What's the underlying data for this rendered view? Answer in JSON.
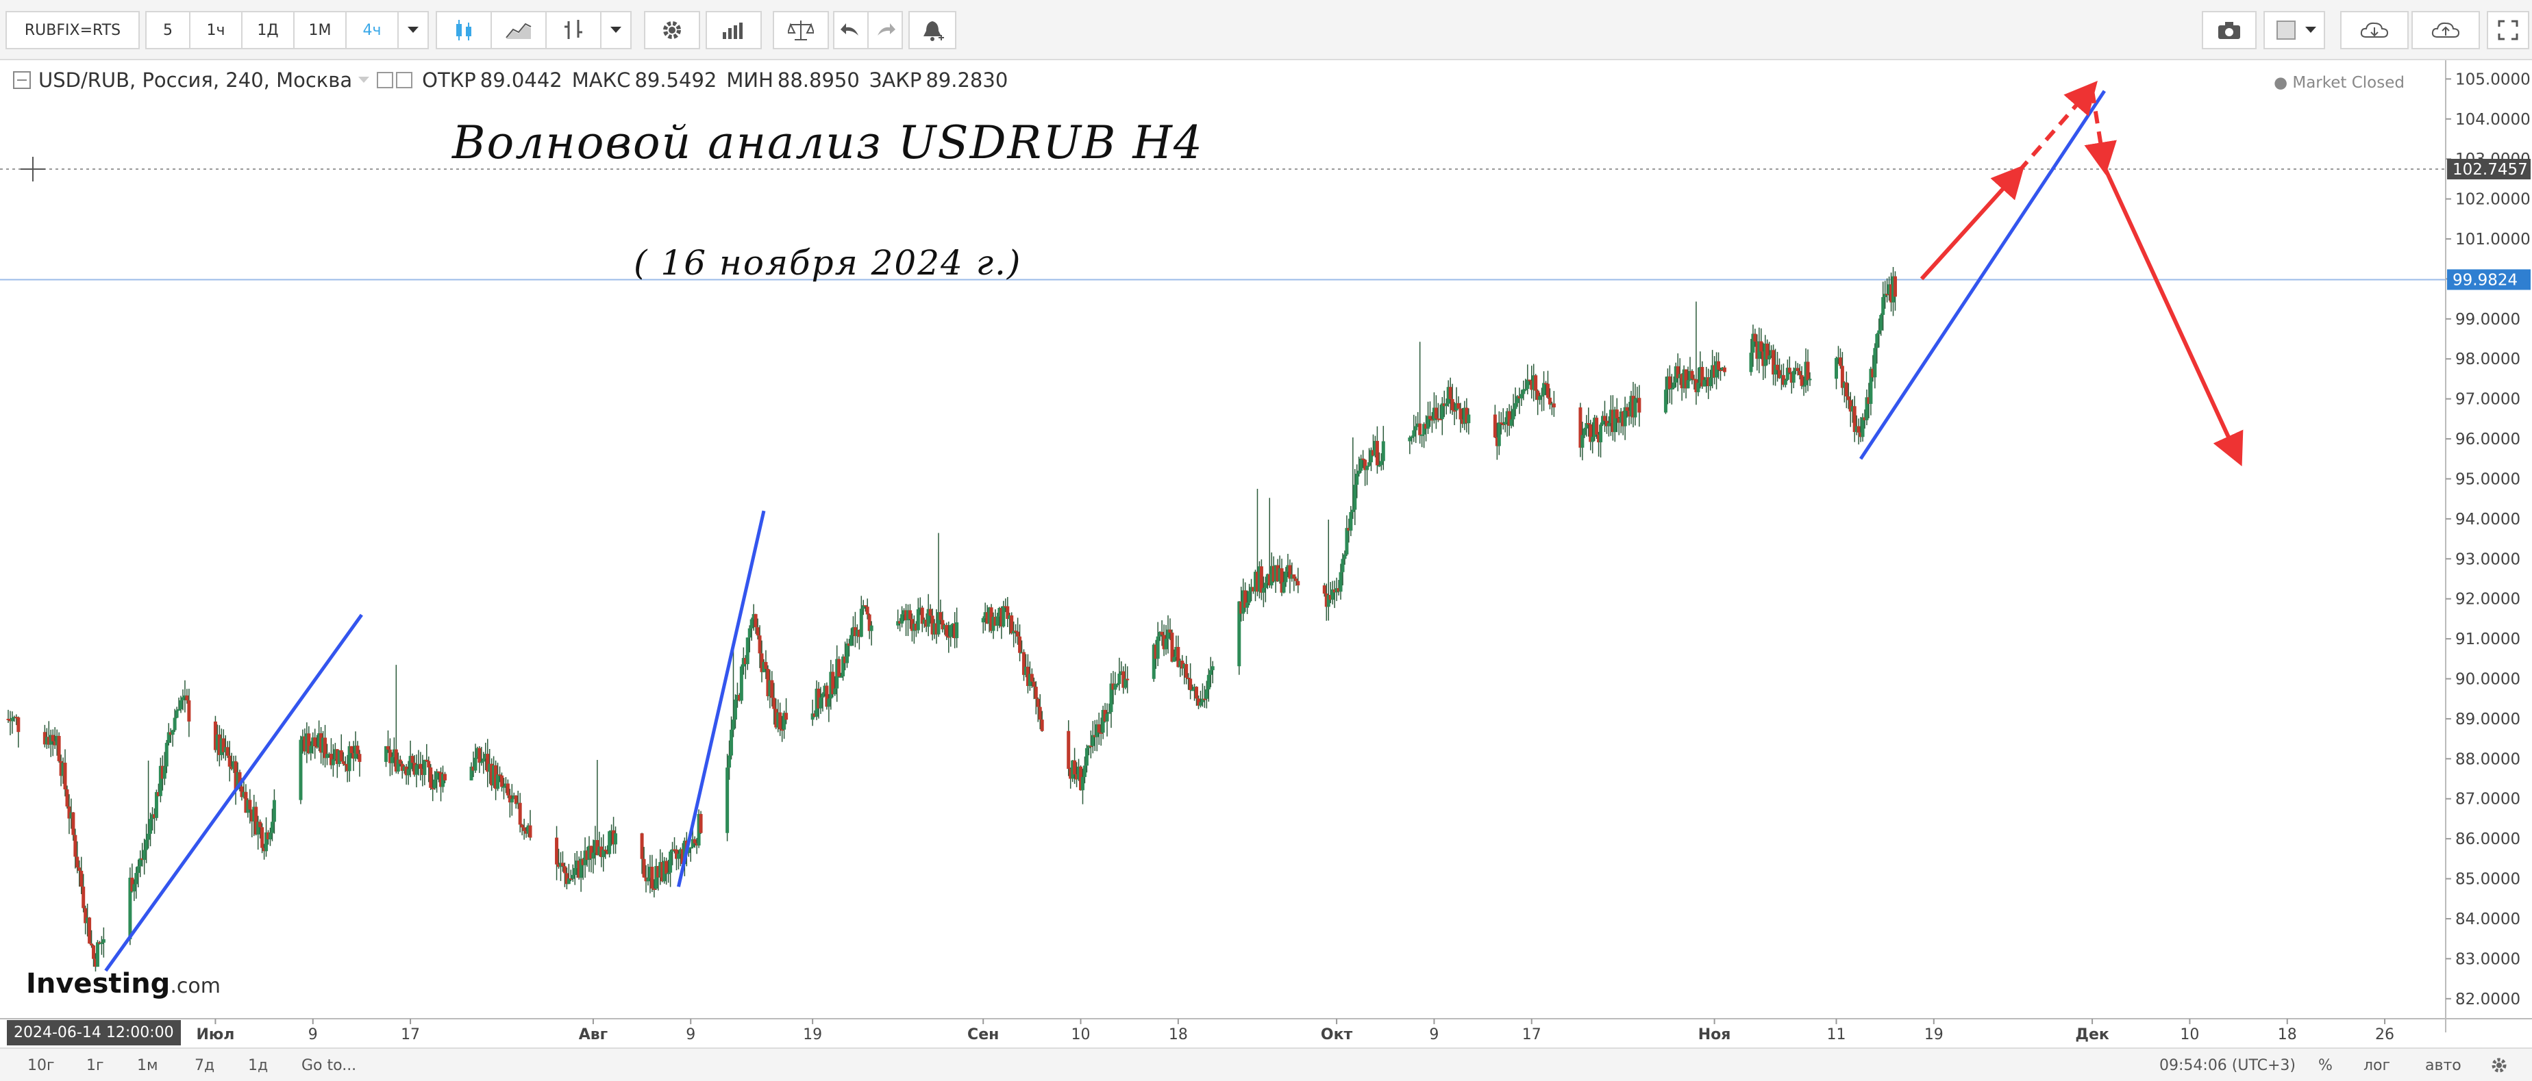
{
  "toolbar": {
    "symbol": "RUBFIX=RTS",
    "intervals": [
      "5",
      "1ч",
      "1Д",
      "1М",
      "4ч"
    ],
    "active_interval": "4ч"
  },
  "legend": {
    "title": "USD/RUB, Россия, 240, Москва",
    "open_label": "ОТКР",
    "open": "89.0442",
    "high_label": "МАКС",
    "high": "89.5492",
    "low_label": "МИН",
    "low": "88.8950",
    "close_label": "ЗАКР",
    "close": "89.2830"
  },
  "status": "Market Closed",
  "annotations": {
    "title": "Волновой анализ USDRUB H4",
    "date": "( 16 ноября 2024 г.)"
  },
  "logo": {
    "brand": "Investing",
    "domain": ".com"
  },
  "crosshair": {
    "time": "2024-06-14 12:00:00",
    "price": "102.7457"
  },
  "last_price": "99.9824",
  "bottombar": {
    "ranges": [
      "10г",
      "1г",
      "1м",
      "7д",
      "1д"
    ],
    "goto": "Go to...",
    "clock": "09:54:06 (UTC+3)",
    "percent": "%",
    "log": "лог",
    "auto": "авто"
  },
  "colors": {
    "up": "#2e8b57",
    "down": "#c0392b",
    "wave_line": "#3355ee",
    "projection": "#ee3333",
    "last_price_bg": "#2f7fd1"
  },
  "chart_data": {
    "type": "candlestick",
    "x_tick_labels": [
      "Июл",
      "9",
      "17",
      "Авг",
      "9",
      "19",
      "Сен",
      "10",
      "18",
      "Окт",
      "9",
      "17",
      "Ноя",
      "11",
      "19",
      "Дек",
      "10",
      "18",
      "26"
    ],
    "y_tick_labels": [
      "82.0000",
      "83.0000",
      "84.0000",
      "85.0000",
      "86.0000",
      "87.0000",
      "88.0000",
      "89.0000",
      "90.0000",
      "91.0000",
      "92.0000",
      "93.0000",
      "94.0000",
      "95.0000",
      "96.0000",
      "97.0000",
      "98.0000",
      "99.0000",
      "100.0000",
      "101.0000",
      "102.0000",
      "103.0000",
      "104.0000",
      "105.0000"
    ],
    "ylim": [
      81.5,
      105.4
    ],
    "xlim": [
      "2024-06-14",
      "2024-12-31"
    ],
    "price_path": [
      [
        "2024-06-14",
        89.0
      ],
      [
        "2024-06-18",
        88.5
      ],
      [
        "2024-06-21",
        83.0
      ],
      [
        "2024-06-25",
        85.5
      ],
      [
        "2024-06-28",
        89.5
      ],
      [
        "2024-07-02",
        88.0
      ],
      [
        "2024-07-05",
        86.0
      ],
      [
        "2024-07-08",
        88.5
      ],
      [
        "2024-07-12",
        88.0
      ],
      [
        "2024-07-16",
        88.0
      ],
      [
        "2024-07-19",
        87.5
      ],
      [
        "2024-07-23",
        88.0
      ],
      [
        "2024-07-26",
        86.5
      ],
      [
        "2024-07-30",
        85.0
      ],
      [
        "2024-08-02",
        86.0
      ],
      [
        "2024-08-06",
        85.0
      ],
      [
        "2024-08-09",
        85.8
      ],
      [
        "2024-08-12",
        88.0
      ],
      [
        "2024-08-14",
        91.5
      ],
      [
        "2024-08-16",
        89.0
      ],
      [
        "2024-08-20",
        89.5
      ],
      [
        "2024-08-23",
        91.5
      ],
      [
        "2024-08-27",
        91.5
      ],
      [
        "2024-08-30",
        91.3
      ],
      [
        "2024-09-04",
        91.5
      ],
      [
        "2024-09-08",
        88.0
      ],
      [
        "2024-09-10",
        87.5
      ],
      [
        "2024-09-13",
        90.0
      ],
      [
        "2024-09-17",
        91.0
      ],
      [
        "2024-09-20",
        89.5
      ],
      [
        "2024-09-24",
        92.5
      ],
      [
        "2024-09-27",
        92.5
      ],
      [
        "2024-10-01",
        92.0
      ],
      [
        "2024-10-03",
        95.5
      ],
      [
        "2024-10-07",
        96.0
      ],
      [
        "2024-10-10",
        97.0
      ],
      [
        "2024-10-14",
        96.0
      ],
      [
        "2024-10-17",
        97.5
      ],
      [
        "2024-10-21",
        96.0
      ],
      [
        "2024-10-24",
        96.5
      ],
      [
        "2024-10-28",
        97.5
      ],
      [
        "2024-10-31",
        97.5
      ],
      [
        "2024-11-04",
        98.5
      ],
      [
        "2024-11-07",
        97.5
      ],
      [
        "2024-11-11",
        98.0
      ],
      [
        "2024-11-13",
        96.0
      ],
      [
        "2024-11-15",
        99.5
      ],
      [
        "2024-11-16",
        99.98
      ]
    ],
    "wave_lines": [
      {
        "from": [
          "2024-06-22",
          82.7
        ],
        "to": [
          "2024-07-13",
          91.6
        ]
      },
      {
        "from": [
          "2024-08-08",
          84.8
        ],
        "to": [
          "2024-08-15",
          94.2
        ]
      },
      {
        "from": [
          "2024-11-13",
          95.5
        ],
        "to": [
          "2024-12-03",
          104.7
        ]
      }
    ],
    "projection_arrows": [
      {
        "from": [
          "2024-11-18",
          100.0
        ],
        "to": [
          "2024-11-26",
          102.7
        ],
        "style": "solid"
      },
      {
        "from": [
          "2024-11-26",
          102.7
        ],
        "to": [
          "2024-12-02",
          104.8
        ],
        "style": "dashed"
      },
      {
        "from": [
          "2024-12-02",
          104.7
        ],
        "to": [
          "2024-12-03",
          102.8
        ],
        "style": "dashed"
      },
      {
        "from": [
          "2024-12-03",
          102.8
        ],
        "to": [
          "2024-12-14",
          95.5
        ],
        "style": "solid"
      }
    ]
  }
}
